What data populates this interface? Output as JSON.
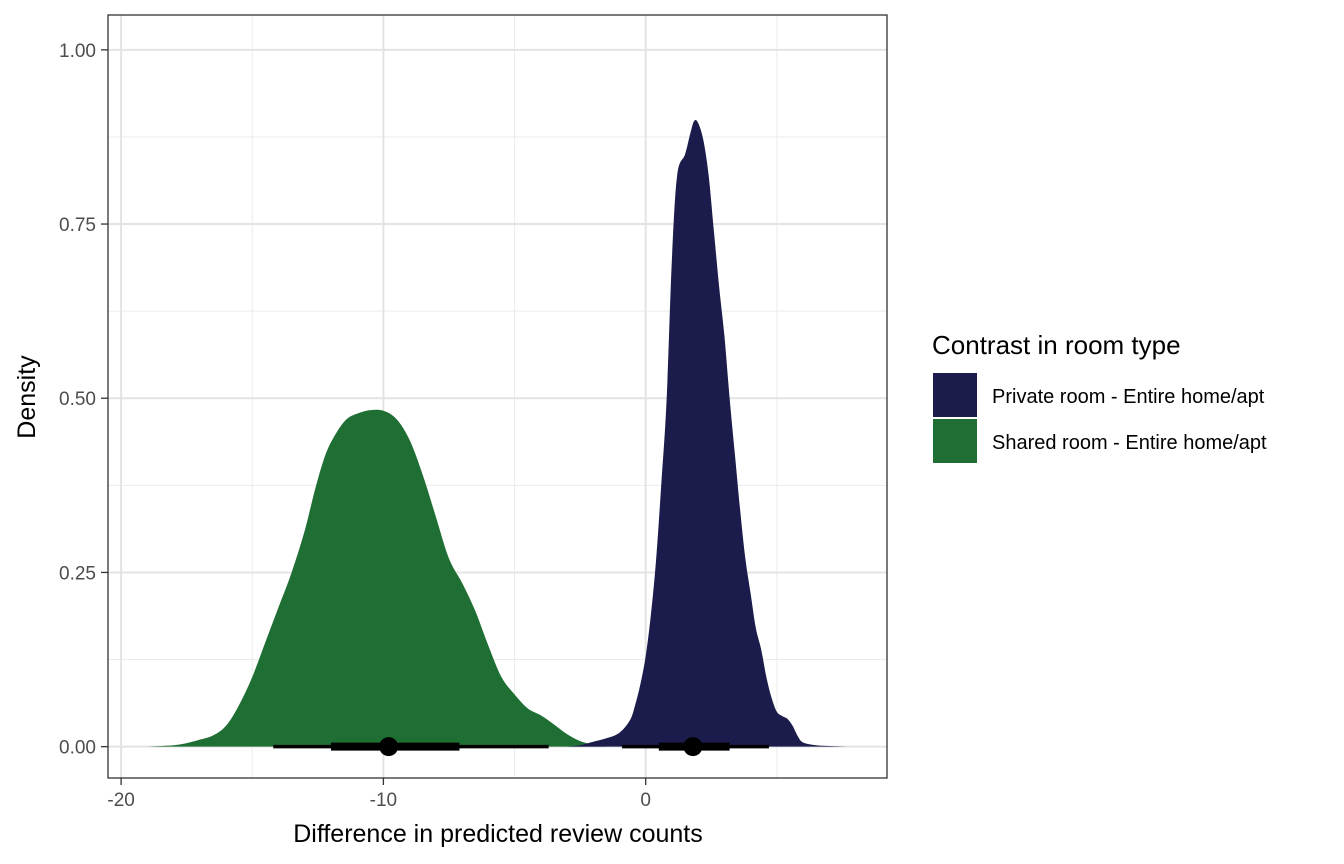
{
  "chart_data": {
    "type": "area",
    "title": "",
    "xlabel": "Difference in predicted review counts",
    "ylabel": "Density",
    "xlim": [
      -20.5,
      9.2
    ],
    "ylim": [
      -0.045,
      1.05
    ],
    "x_ticks": [
      -20,
      -10,
      0
    ],
    "x_tick_labels": [
      "-20",
      "-10",
      "0"
    ],
    "y_ticks": [
      0,
      0.25,
      0.5,
      0.75,
      1.0
    ],
    "y_tick_labels": [
      "0.00",
      "0.25",
      "0.50",
      "0.75",
      "1.00"
    ],
    "grid": true,
    "legend": {
      "title": "Contrast in room type",
      "placement": "right"
    },
    "series": [
      {
        "name": "Shared room - Entire home/apt",
        "color": "#1f6e33",
        "density": [
          [
            -19.0,
            0.0
          ],
          [
            -18.0,
            0.002
          ],
          [
            -17.5,
            0.005
          ],
          [
            -17.0,
            0.01
          ],
          [
            -16.5,
            0.016
          ],
          [
            -16.0,
            0.03
          ],
          [
            -15.5,
            0.06
          ],
          [
            -15.0,
            0.1
          ],
          [
            -14.5,
            0.15
          ],
          [
            -14.0,
            0.2
          ],
          [
            -13.5,
            0.25
          ],
          [
            -13.0,
            0.31
          ],
          [
            -12.6,
            0.37
          ],
          [
            -12.2,
            0.42
          ],
          [
            -11.8,
            0.45
          ],
          [
            -11.4,
            0.47
          ],
          [
            -11.0,
            0.478
          ],
          [
            -10.5,
            0.483
          ],
          [
            -10.0,
            0.482
          ],
          [
            -9.5,
            0.47
          ],
          [
            -9.0,
            0.44
          ],
          [
            -8.5,
            0.39
          ],
          [
            -8.0,
            0.33
          ],
          [
            -7.5,
            0.27
          ],
          [
            -7.0,
            0.235
          ],
          [
            -6.5,
            0.195
          ],
          [
            -6.0,
            0.145
          ],
          [
            -5.5,
            0.1
          ],
          [
            -5.0,
            0.075
          ],
          [
            -4.5,
            0.055
          ],
          [
            -4.0,
            0.045
          ],
          [
            -3.5,
            0.032
          ],
          [
            -3.0,
            0.018
          ],
          [
            -2.5,
            0.008
          ],
          [
            -2.0,
            0.003
          ],
          [
            -1.5,
            0.0
          ]
        ],
        "point": -9.8,
        "interval_inner": [
          -12.0,
          -7.1
        ],
        "interval_outer": [
          -14.2,
          -3.7
        ]
      },
      {
        "name": "Private room - Entire home/apt",
        "color": "#1b1b4c",
        "density": [
          [
            -3.0,
            0.0
          ],
          [
            -2.5,
            0.002
          ],
          [
            -2.0,
            0.007
          ],
          [
            -1.5,
            0.012
          ],
          [
            -1.0,
            0.02
          ],
          [
            -0.6,
            0.038
          ],
          [
            -0.4,
            0.06
          ],
          [
            -0.2,
            0.09
          ],
          [
            0.0,
            0.13
          ],
          [
            0.2,
            0.19
          ],
          [
            0.4,
            0.27
          ],
          [
            0.6,
            0.38
          ],
          [
            0.8,
            0.5
          ],
          [
            1.0,
            0.7
          ],
          [
            1.2,
            0.82
          ],
          [
            1.5,
            0.85
          ],
          [
            1.7,
            0.88
          ],
          [
            1.85,
            0.898
          ],
          [
            2.0,
            0.895
          ],
          [
            2.2,
            0.87
          ],
          [
            2.4,
            0.82
          ],
          [
            2.6,
            0.74
          ],
          [
            2.8,
            0.66
          ],
          [
            3.0,
            0.59
          ],
          [
            3.2,
            0.5
          ],
          [
            3.4,
            0.42
          ],
          [
            3.6,
            0.34
          ],
          [
            3.8,
            0.27
          ],
          [
            4.0,
            0.22
          ],
          [
            4.2,
            0.17
          ],
          [
            4.4,
            0.14
          ],
          [
            4.6,
            0.1
          ],
          [
            4.8,
            0.07
          ],
          [
            5.0,
            0.05
          ],
          [
            5.2,
            0.044
          ],
          [
            5.4,
            0.04
          ],
          [
            5.6,
            0.03
          ],
          [
            5.8,
            0.015
          ],
          [
            6.0,
            0.006
          ],
          [
            6.5,
            0.002
          ],
          [
            7.0,
            0.001
          ],
          [
            7.8,
            0.0
          ]
        ],
        "point": 1.8,
        "interval_inner": [
          0.5,
          3.2
        ],
        "interval_outer": [
          -0.9,
          4.7
        ]
      }
    ]
  }
}
